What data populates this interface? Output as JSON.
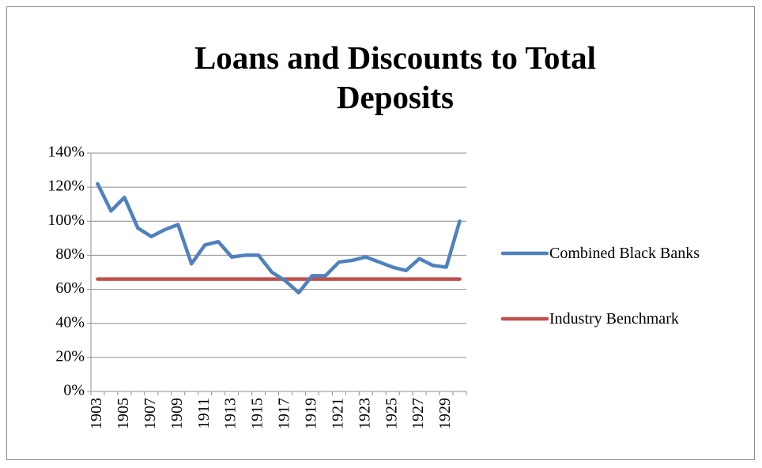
{
  "chart_data": {
    "type": "line",
    "title": "Loans and Discounts to Total Deposits",
    "categories": [
      "1903",
      null,
      "1905",
      null,
      "1907",
      null,
      "1909",
      null,
      "1911",
      null,
      "1913",
      null,
      "1915",
      null,
      "1917",
      null,
      "1919",
      null,
      "1921",
      null,
      "1923",
      null,
      "1925",
      null,
      "1927",
      null,
      "1929",
      null
    ],
    "series": [
      {
        "name": "Combined Black Banks",
        "color": "#4f81bd",
        "values": [
          122,
          106,
          114,
          96,
          91,
          95,
          98,
          75,
          86,
          88,
          79,
          80,
          80,
          70,
          65,
          58,
          68,
          68,
          76,
          77,
          79,
          76,
          73,
          71,
          78,
          74,
          73,
          100
        ]
      },
      {
        "name": "Industry Benchmark",
        "color": "#c0504d",
        "values": [
          66,
          66,
          66,
          66,
          66,
          66,
          66,
          66,
          66,
          66,
          66,
          66,
          66,
          66,
          66,
          66,
          66,
          66,
          66,
          66,
          66,
          66,
          66,
          66,
          66,
          66,
          66,
          66
        ]
      }
    ],
    "ylim": [
      0,
      140
    ],
    "yticks": [
      {
        "value": 0,
        "label": "0%"
      },
      {
        "value": 20,
        "label": "20%"
      },
      {
        "value": 40,
        "label": "40%"
      },
      {
        "value": 60,
        "label": "60%"
      },
      {
        "value": 80,
        "label": "80%"
      },
      {
        "value": 100,
        "label": "100%"
      },
      {
        "value": 120,
        "label": "120%"
      },
      {
        "value": 140,
        "label": "140%"
      }
    ],
    "grid": true,
    "legend": "right"
  }
}
